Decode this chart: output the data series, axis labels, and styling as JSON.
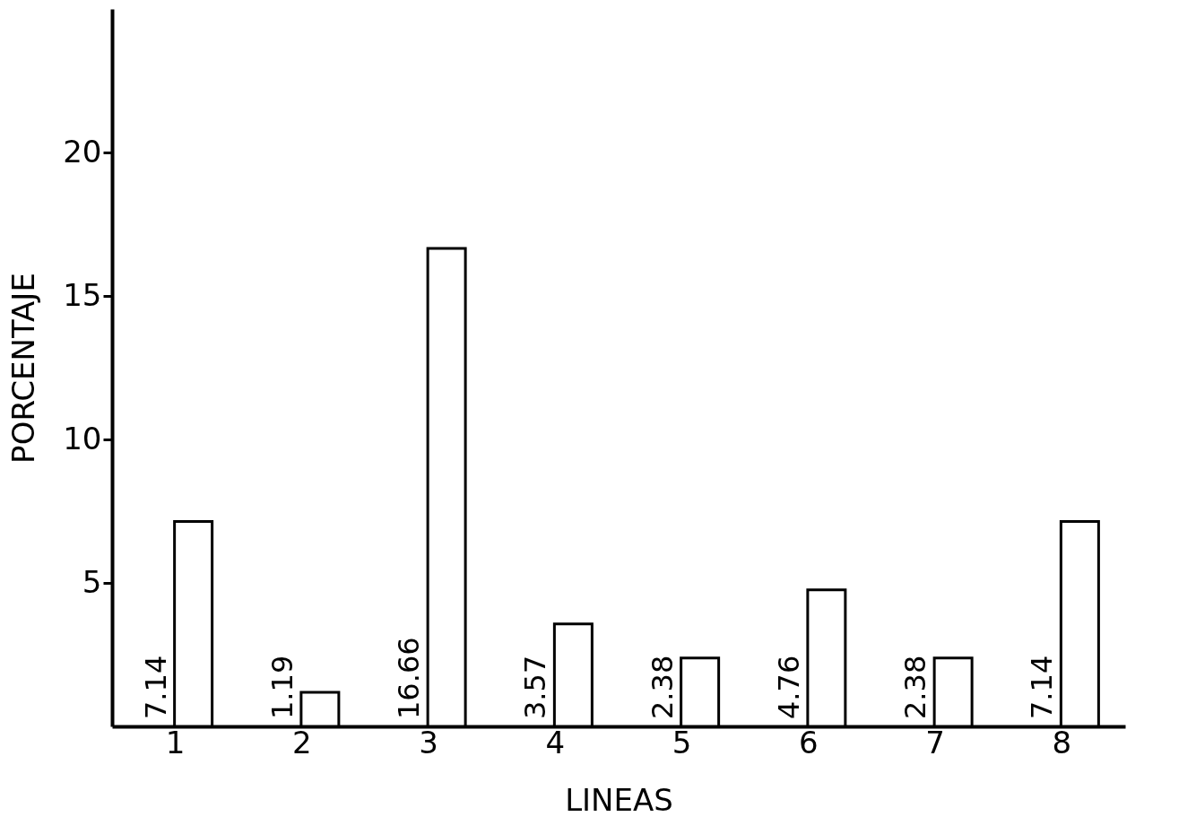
{
  "chart_data": {
    "type": "bar",
    "xlabel": "LINEAS",
    "ylabel": "PORCENTAJE",
    "categories": [
      "1",
      "2",
      "3",
      "4",
      "5",
      "6",
      "7",
      "8"
    ],
    "values": [
      7.14,
      1.19,
      16.66,
      3.57,
      2.38,
      4.76,
      2.38,
      7.14
    ],
    "color": "#ffffff",
    "data_labels": true,
    "grid": false,
    "ylim": [
      0,
      25
    ],
    "yticks": [
      5,
      10,
      15,
      20
    ]
  }
}
